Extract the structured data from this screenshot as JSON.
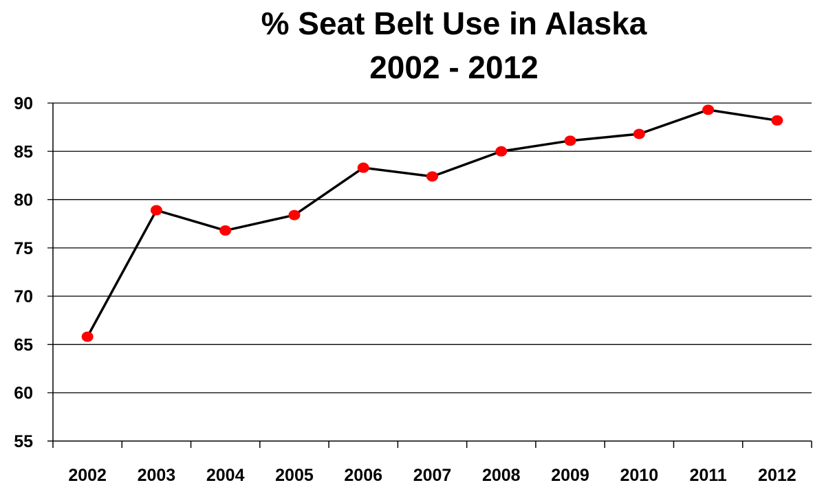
{
  "chart_data": {
    "type": "line",
    "title": [
      "% Seat Belt Use in Alaska",
      "2002 - 2012"
    ],
    "xlabel": "",
    "ylabel": "",
    "categories": [
      "2002",
      "2003",
      "2004",
      "2005",
      "2006",
      "2007",
      "2008",
      "2009",
      "2010",
      "2011",
      "2012"
    ],
    "series": [
      {
        "values": [
          65.8,
          78.9,
          76.8,
          78.4,
          83.3,
          82.4,
          85.0,
          86.1,
          86.8,
          89.3,
          88.2
        ]
      }
    ],
    "ylim": [
      55,
      90
    ],
    "yticks": [
      55,
      60,
      65,
      70,
      75,
      80,
      85,
      90
    ],
    "grid": "horizontal",
    "legend": "none",
    "colors": {
      "line": "#000000",
      "marker": "#ff0000",
      "grid": "#000000"
    }
  }
}
